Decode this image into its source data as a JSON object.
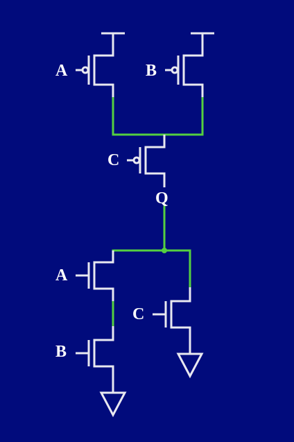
{
  "colors": {
    "background": "#010b7c",
    "device": "#e8e8f0",
    "node": "#55d040",
    "label": "#ffffff"
  },
  "labels": {
    "pmos_a": "A",
    "pmos_b": "B",
    "pmos_c": "C",
    "output": "Q",
    "nmos_a": "A",
    "nmos_b": "B",
    "nmos_c": "C"
  },
  "icons": {
    "supply": "vdd-tee",
    "ground": "ground-triangle"
  }
}
